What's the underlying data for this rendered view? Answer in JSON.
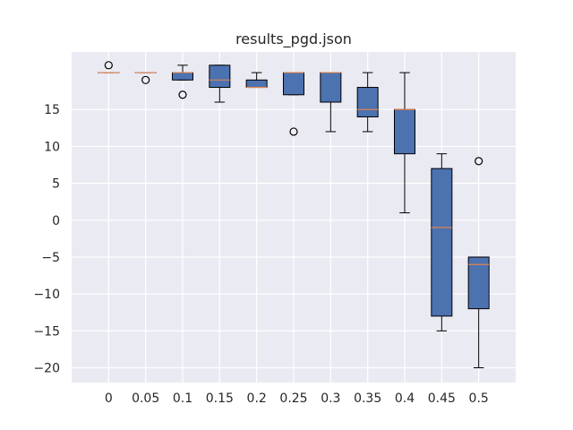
{
  "chart_data": {
    "type": "box",
    "title": "results_pgd.json",
    "xlabel": "",
    "ylabel": "",
    "categories": [
      "0",
      "0.05",
      "0.1",
      "0.15",
      "0.2",
      "0.25",
      "0.3",
      "0.35",
      "0.4",
      "0.45",
      "0.5"
    ],
    "yticks": [
      15,
      10,
      5,
      0,
      -5,
      -10,
      -15,
      -20
    ],
    "ytick_labels": [
      "15",
      "10",
      "5",
      "0",
      "−5",
      "−10",
      "−15",
      "−20"
    ],
    "ylim": [
      -22,
      22.8
    ],
    "grid": true,
    "boxes": [
      {
        "q1": 20,
        "median": 20,
        "q3": 20,
        "whisker_low": 20,
        "whisker_high": 20,
        "outliers": [
          21
        ]
      },
      {
        "q1": 20,
        "median": 20,
        "q3": 20,
        "whisker_low": 20,
        "whisker_high": 20,
        "outliers": [
          19
        ]
      },
      {
        "q1": 19,
        "median": 20,
        "q3": 20,
        "whisker_low": 19,
        "whisker_high": 21,
        "outliers": [
          17
        ]
      },
      {
        "q1": 18,
        "median": 19,
        "q3": 21,
        "whisker_low": 16,
        "whisker_high": 21,
        "outliers": []
      },
      {
        "q1": 18,
        "median": 18,
        "q3": 19,
        "whisker_low": 18,
        "whisker_high": 20,
        "outliers": []
      },
      {
        "q1": 17,
        "median": 20,
        "q3": 20,
        "whisker_low": 17,
        "whisker_high": 20,
        "outliers": [
          12
        ]
      },
      {
        "q1": 16,
        "median": 20,
        "q3": 20,
        "whisker_low": 12,
        "whisker_high": 20,
        "outliers": []
      },
      {
        "q1": 14,
        "median": 15,
        "q3": 18,
        "whisker_low": 12,
        "whisker_high": 20,
        "outliers": []
      },
      {
        "q1": 9,
        "median": 15,
        "q3": 15,
        "whisker_low": 1,
        "whisker_high": 20,
        "outliers": []
      },
      {
        "q1": -13,
        "median": -1,
        "q3": 7,
        "whisker_low": -15,
        "whisker_high": 9,
        "outliers": []
      },
      {
        "q1": -12,
        "median": -6,
        "q3": -5,
        "whisker_low": -20,
        "whisker_high": -5,
        "outliers": [
          8
        ]
      }
    ],
    "colors": {
      "background": "#eaeaf2",
      "grid": "#ffffff",
      "box_fill": "#4c72b0",
      "median": "#dd8452",
      "line": "#000000",
      "text": "#262626"
    }
  }
}
